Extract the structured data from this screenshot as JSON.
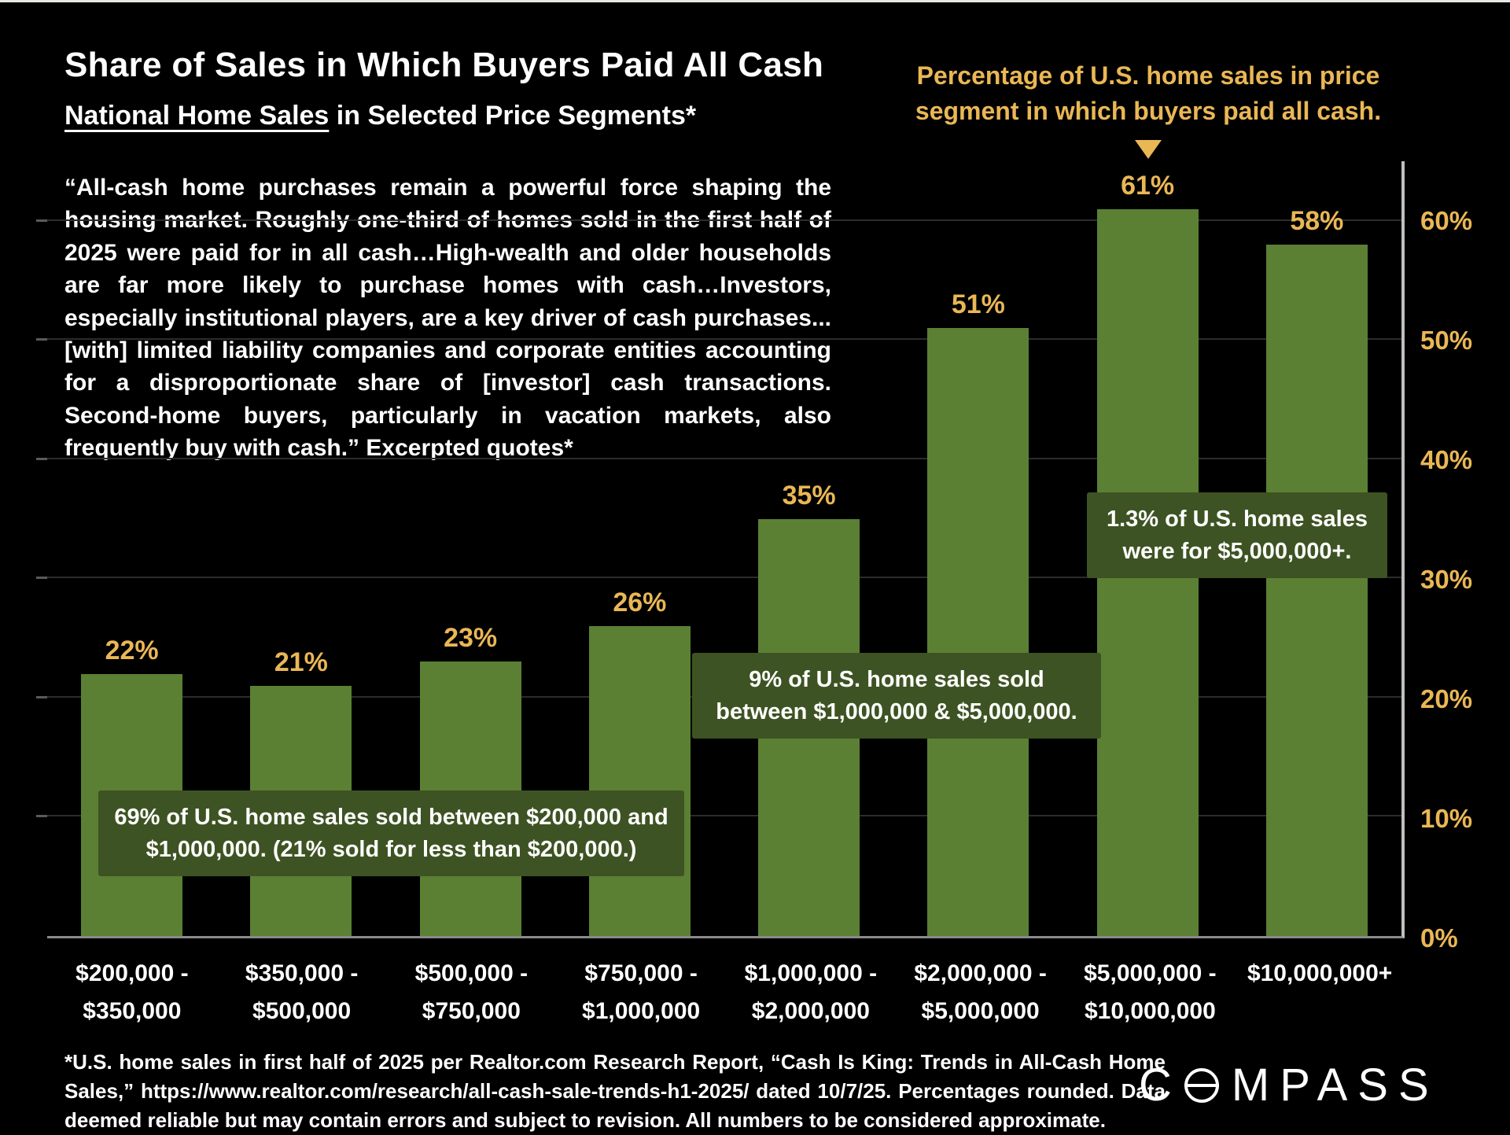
{
  "header": {
    "title": "Share of Sales in Which Buyers Paid All Cash",
    "subtitle_underlined": "National Home Sales",
    "subtitle_rest": " in Selected Price Segments*"
  },
  "quote": "“All-cash home purchases remain a powerful force shaping the housing market. Roughly one-third of homes sold in the first half of 2025 were paid for in all cash…High-wealth and older households are far more likely to purchase homes with cash…Investors, especially institutional players, are a key driver of cash purchases...[with] limited liability companies and corporate entities accounting for a disproportionate share of [investor] cash transactions. Second-home buyers, particularly in vacation markets, also frequently buy with cash.” Excerpted quotes*",
  "top_annotation": {
    "line1": "Percentage of U.S. home sales in price",
    "line2": "segment in which buyers paid all cash.",
    "pointer_icon": "down-triangle"
  },
  "chart_data": {
    "type": "bar",
    "title": "Share of Sales in Which Buyers Paid All Cash — National Home Sales in Selected Price Segments",
    "categories": [
      [
        "$200,000 -",
        "$350,000"
      ],
      [
        "$350,000 -",
        "$500,000"
      ],
      [
        "$500,000 -",
        "$750,000"
      ],
      [
        "$750,000 -",
        "$1,000,000"
      ],
      [
        "$1,000,000 -",
        "$2,000,000"
      ],
      [
        "$2,000,000 -",
        "$5,000,000"
      ],
      [
        "$5,000,000 -",
        "$10,000,000"
      ],
      [
        "$10,000,000+"
      ]
    ],
    "values": [
      22,
      21,
      23,
      26,
      35,
      51,
      61,
      58
    ],
    "unit": "%",
    "xlabel": "",
    "ylabel": "",
    "ylim": [
      0,
      65
    ],
    "y_ticks": [
      0,
      10,
      20,
      30,
      40,
      50,
      60
    ],
    "y_axis_side": "right",
    "grid": true,
    "legend": "none",
    "bar_color": "#5b8034",
    "value_label_color": "#eab755"
  },
  "callouts": {
    "box1": "69% of U.S. home sales sold between $200,000 and $1,000,000. (21% sold for less than $200,000.)",
    "box2": "9% of U.S. home sales sold between $1,000,000 & $5,000,000.",
    "box3": "1.3% of U.S. home sales were for $5,000,000+."
  },
  "footer": {
    "disclaimer": "*U.S. home sales in first half of 2025 per Realtor.com Research Report, “Cash Is King: Trends in All-Cash Home Sales,” https://www.realtor.com/research/all-cash-sale-trends-h1-2025/ dated 10/7/25. Percentages rounded. Data deemed reliable but may contain errors and subject to revision. All numbers to be considered approximate.",
    "logo_c": "C",
    "logo_rest": "MPASS"
  },
  "colors": {
    "background": "#000000",
    "gold_accent": "#eab755",
    "bar_green": "#5b8034",
    "callout_green": "#3e5323",
    "text_white": "#ffffff"
  }
}
